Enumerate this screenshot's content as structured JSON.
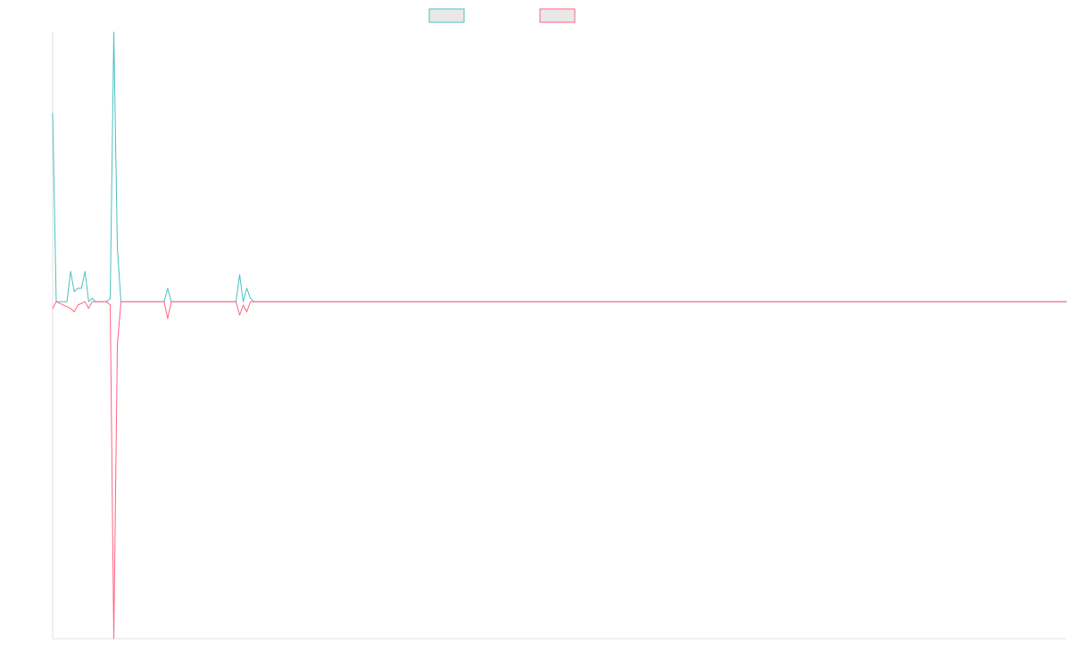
{
  "chart_data": {
    "type": "line",
    "title": "",
    "xlabel": "",
    "ylabel": "",
    "grid": false,
    "legend_position": "top-center",
    "ylim": [
      -100,
      80
    ],
    "xlim": [
      0,
      282
    ],
    "series": [
      {
        "name": "",
        "color": "#4bc0c0",
        "points": [
          [
            0,
            56
          ],
          [
            1,
            0
          ],
          [
            4,
            0
          ],
          [
            5,
            9
          ],
          [
            6,
            3
          ],
          [
            7,
            4
          ],
          [
            8,
            4
          ],
          [
            9,
            9
          ],
          [
            10,
            0
          ],
          [
            11,
            1
          ],
          [
            12,
            0
          ],
          [
            15,
            0
          ],
          [
            16,
            1
          ],
          [
            17,
            80
          ],
          [
            18,
            16
          ],
          [
            19,
            0
          ],
          [
            31,
            0
          ],
          [
            32,
            4
          ],
          [
            33,
            0
          ],
          [
            51,
            0
          ],
          [
            52,
            8
          ],
          [
            53,
            0
          ],
          [
            54,
            4
          ],
          [
            55,
            1
          ],
          [
            56,
            0
          ],
          [
            282,
            0
          ]
        ]
      },
      {
        "name": "",
        "color": "#ff6384",
        "points": [
          [
            0,
            -2
          ],
          [
            1,
            0
          ],
          [
            5,
            -2
          ],
          [
            6,
            -3
          ],
          [
            7,
            -1
          ],
          [
            9,
            0
          ],
          [
            10,
            -2
          ],
          [
            11,
            0
          ],
          [
            15,
            0
          ],
          [
            16,
            -1
          ],
          [
            17,
            -100
          ],
          [
            18,
            -13
          ],
          [
            19,
            0
          ],
          [
            31,
            0
          ],
          [
            32,
            -5
          ],
          [
            33,
            0
          ],
          [
            51,
            0
          ],
          [
            52,
            -4
          ],
          [
            53,
            -1
          ],
          [
            54,
            -3
          ],
          [
            55,
            0
          ],
          [
            282,
            0
          ]
        ]
      }
    ]
  }
}
